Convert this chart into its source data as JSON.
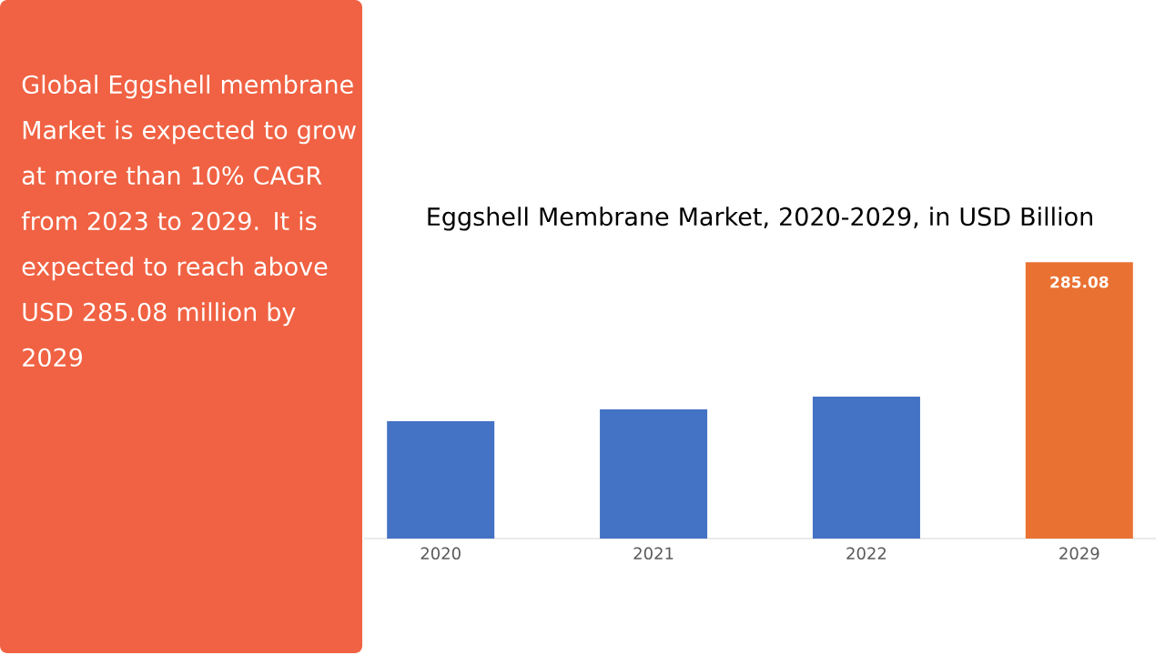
{
  "chart_data": {
    "type": "bar",
    "title": "Eggshell Membrane Market, 2020-2029, in USD Billion",
    "categories": [
      "2020",
      "2021",
      "2022",
      "2029"
    ],
    "values": [
      121.0,
      133.2,
      146.3,
      285.08
    ],
    "colors": [
      "#4472c4",
      "#4472c4",
      "#4472c4",
      "#e97132"
    ],
    "value_labels": [
      null,
      null,
      null,
      "285.08"
    ],
    "annotations": [
      "Global Eggshell membrane Market is expected to grow at more than 10% CAGR from 2023 to 2029. It is expected to reach above USD 285.08 million by 2029"
    ]
  }
}
